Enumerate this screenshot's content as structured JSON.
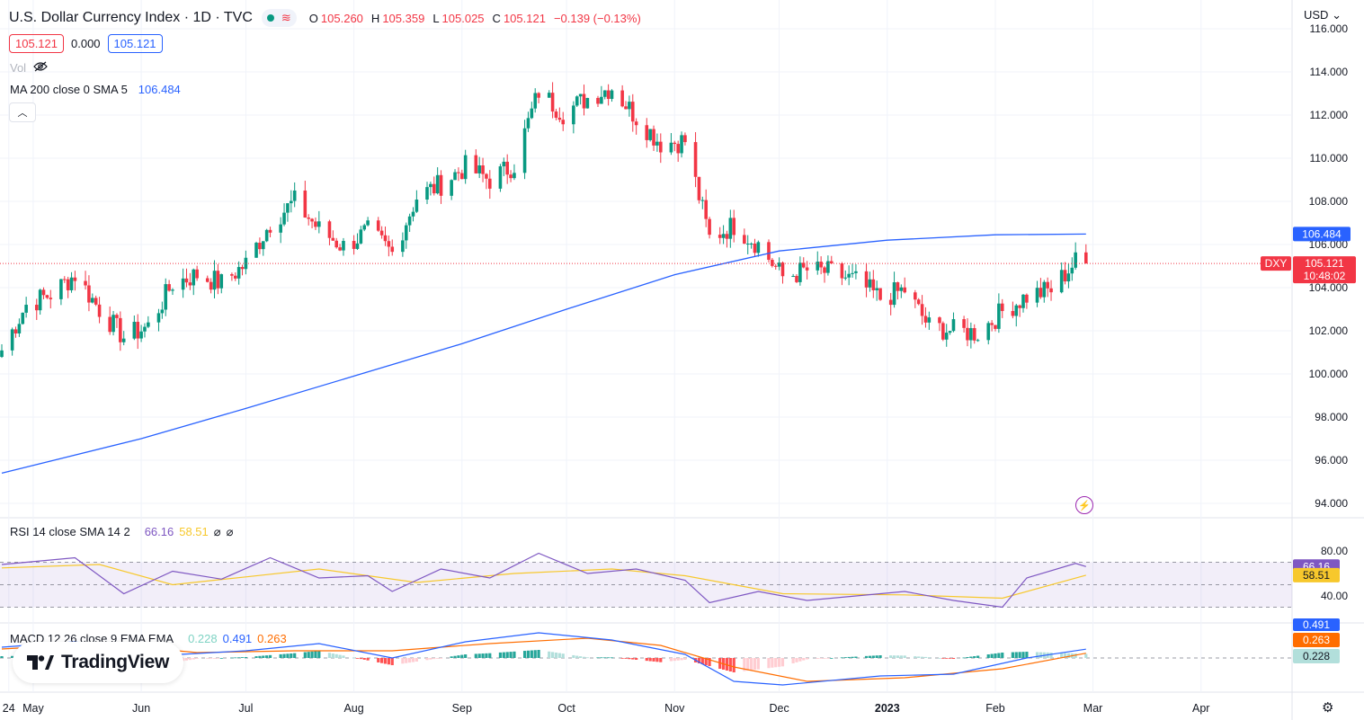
{
  "header": {
    "title": "U.S. Dollar Currency Index · 1D · TVC",
    "ohlc": [
      {
        "k": "O",
        "v": "105.260"
      },
      {
        "k": "H",
        "v": "105.359"
      },
      {
        "k": "L",
        "v": "105.025"
      },
      {
        "k": "C",
        "v": "105.121"
      }
    ],
    "change": "−0.139 (−0.13%)",
    "sell": "105.121",
    "spread": "0.000",
    "buy": "105.121",
    "vol_label": "Vol",
    "ma_label": "MA 200 close 0 SMA 5",
    "ma_value": "106.484",
    "currency": "USD"
  },
  "price_axis": {
    "ticks": [
      "116.000",
      "114.000",
      "112.000",
      "110.000",
      "108.000",
      "106.000",
      "104.000",
      "102.000",
      "100.000",
      "98.000",
      "96.000",
      "94.000"
    ],
    "dxy_tag": "DXY",
    "last_price": "105.121",
    "countdown": "10:48:02",
    "ma_price": "106.484"
  },
  "rsi": {
    "label": "RSI 14 close SMA 14 2",
    "rsi_value": "66.16",
    "sma_value": "58.51",
    "ticks": [
      "80.00",
      "40.00"
    ],
    "na1": "⌀",
    "na2": "⌀"
  },
  "macd": {
    "label": "MACD 12 26 close 9 EMA EMA",
    "hist_value": "0.228",
    "macd_value": "0.491",
    "signal_value": "0.263"
  },
  "time_axis": {
    "labels": [
      "May",
      "Jun",
      "Jul",
      "Aug",
      "Sep",
      "Oct",
      "Nov",
      "Dec",
      "2023",
      "Feb",
      "Mar",
      "Apr",
      "24"
    ]
  },
  "logo_text": "TradingView",
  "colors": {
    "up": "#089981",
    "down": "#f23645",
    "ma": "#2962ff",
    "rsi": "#7e57c2",
    "rsi_sma": "#f7c82c",
    "macd": "#2962ff",
    "signal": "#ff6d00"
  },
  "chart_data": {
    "type": "candlestick",
    "title": "U.S. Dollar Currency Index · 1D · TVC",
    "ylim": [
      94,
      116
    ],
    "closes_weekly_approx": [
      {
        "t": "Apr 22",
        "c": 101.1
      },
      {
        "t": "Apr 29",
        "c": 103.2
      },
      {
        "t": "May 6",
        "c": 103.7
      },
      {
        "t": "May 13",
        "c": 104.6
      },
      {
        "t": "May 20",
        "c": 103.0
      },
      {
        "t": "May 27",
        "c": 101.7
      },
      {
        "t": "Jun 3",
        "c": 102.2
      },
      {
        "t": "Jun 10",
        "c": 104.2
      },
      {
        "t": "Jun 17",
        "c": 104.6
      },
      {
        "t": "Jun 24",
        "c": 104.2
      },
      {
        "t": "Jul 1",
        "c": 105.1
      },
      {
        "t": "Jul 8",
        "c": 107.0
      },
      {
        "t": "Jul 15",
        "c": 108.0
      },
      {
        "t": "Jul 22",
        "c": 106.7
      },
      {
        "t": "Jul 29",
        "c": 105.9
      },
      {
        "t": "Aug 5",
        "c": 106.6
      },
      {
        "t": "Aug 12",
        "c": 105.6
      },
      {
        "t": "Aug 19",
        "c": 108.2
      },
      {
        "t": "Aug 26",
        "c": 108.8
      },
      {
        "t": "Sep 2",
        "c": 109.6
      },
      {
        "t": "Sep 9",
        "c": 109.0
      },
      {
        "t": "Sep 16",
        "c": 109.7
      },
      {
        "t": "Sep 23",
        "c": 113.1
      },
      {
        "t": "Sep 30",
        "c": 112.1
      },
      {
        "t": "Oct 7",
        "c": 112.8
      },
      {
        "t": "Oct 14",
        "c": 113.3
      },
      {
        "t": "Oct 21",
        "c": 111.9
      },
      {
        "t": "Oct 28",
        "c": 110.7
      },
      {
        "t": "Nov 4",
        "c": 110.8
      },
      {
        "t": "Nov 11",
        "c": 106.3
      },
      {
        "t": "Nov 18",
        "c": 106.9
      },
      {
        "t": "Nov 25",
        "c": 106.0
      },
      {
        "t": "Dec 2",
        "c": 104.5
      },
      {
        "t": "Dec 9",
        "c": 104.8
      },
      {
        "t": "Dec 16",
        "c": 104.7
      },
      {
        "t": "Dec 23",
        "c": 104.3
      },
      {
        "t": "Dec 30",
        "c": 103.5
      },
      {
        "t": "Jan 6",
        "c": 103.9
      },
      {
        "t": "Jan 13",
        "c": 102.2
      },
      {
        "t": "Jan 20",
        "c": 102.0
      },
      {
        "t": "Jan 27",
        "c": 101.9
      },
      {
        "t": "Feb 3",
        "c": 102.9
      },
      {
        "t": "Feb 10",
        "c": 103.6
      },
      {
        "t": "Feb 17",
        "c": 103.9
      },
      {
        "t": "Feb 24",
        "c": 105.2
      },
      {
        "t": "Feb 27",
        "c": 105.121
      }
    ],
    "ma200_points": [
      {
        "t": "Apr 22",
        "v": 95.4
      },
      {
        "t": "Jun 1",
        "v": 97.0
      },
      {
        "t": "Jul 1",
        "v": 98.4
      },
      {
        "t": "Aug 1",
        "v": 99.9
      },
      {
        "t": "Sep 1",
        "v": 101.4
      },
      {
        "t": "Oct 1",
        "v": 103.0
      },
      {
        "t": "Nov 1",
        "v": 104.6
      },
      {
        "t": "Dec 1",
        "v": 105.7
      },
      {
        "t": "Jan 1",
        "v": 106.2
      },
      {
        "t": "Feb 1",
        "v": 106.45
      },
      {
        "t": "Feb 27",
        "v": 106.484
      }
    ],
    "rsi_ylim": [
      20,
      100
    ],
    "rsi_points": [
      {
        "t": "Apr 22",
        "v": 68
      },
      {
        "t": "May 13",
        "v": 74
      },
      {
        "t": "May 27",
        "v": 42
      },
      {
        "t": "Jun 10",
        "v": 62
      },
      {
        "t": "Jun 24",
        "v": 55
      },
      {
        "t": "Jul 8",
        "v": 74
      },
      {
        "t": "Jul 22",
        "v": 56
      },
      {
        "t": "Aug 5",
        "v": 58
      },
      {
        "t": "Aug 12",
        "v": 44
      },
      {
        "t": "Aug 26",
        "v": 64
      },
      {
        "t": "Sep 9",
        "v": 56
      },
      {
        "t": "Sep 23",
        "v": 78
      },
      {
        "t": "Oct 7",
        "v": 60
      },
      {
        "t": "Oct 21",
        "v": 64
      },
      {
        "t": "Nov 4",
        "v": 54
      },
      {
        "t": "Nov 11",
        "v": 34
      },
      {
        "t": "Nov 25",
        "v": 44
      },
      {
        "t": "Dec 9",
        "v": 36
      },
      {
        "t": "Dec 23",
        "v": 40
      },
      {
        "t": "Jan 6",
        "v": 44
      },
      {
        "t": "Jan 20",
        "v": 36
      },
      {
        "t": "Feb 3",
        "v": 30
      },
      {
        "t": "Feb 10",
        "v": 56
      },
      {
        "t": "Feb 24",
        "v": 69
      },
      {
        "t": "Feb 27",
        "v": 66.16
      }
    ],
    "rsi_sma_points": [
      {
        "t": "Apr 22",
        "v": 65
      },
      {
        "t": "May 20",
        "v": 68
      },
      {
        "t": "Jun 10",
        "v": 50
      },
      {
        "t": "Jul 1",
        "v": 57
      },
      {
        "t": "Jul 22",
        "v": 64
      },
      {
        "t": "Aug 19",
        "v": 52
      },
      {
        "t": "Sep 16",
        "v": 60
      },
      {
        "t": "Oct 14",
        "v": 64
      },
      {
        "t": "Nov 4",
        "v": 58
      },
      {
        "t": "Dec 2",
        "v": 42
      },
      {
        "t": "Jan 6",
        "v": 41
      },
      {
        "t": "Feb 3",
        "v": 38
      },
      {
        "t": "Feb 27",
        "v": 58.51
      }
    ],
    "macd_points": [
      {
        "t": "Apr 22",
        "v": 0.6
      },
      {
        "t": "May 13",
        "v": 0.9
      },
      {
        "t": "Jun 3",
        "v": 0.1
      },
      {
        "t": "Jul 1",
        "v": 0.4
      },
      {
        "t": "Jul 22",
        "v": 0.8
      },
      {
        "t": "Aug 12",
        "v": 0.0
      },
      {
        "t": "Sep 2",
        "v": 0.9
      },
      {
        "t": "Sep 23",
        "v": 1.4
      },
      {
        "t": "Oct 14",
        "v": 1.0
      },
      {
        "t": "Nov 4",
        "v": 0.2
      },
      {
        "t": "Nov 18",
        "v": -1.3
      },
      {
        "t": "Dec 2",
        "v": -1.5
      },
      {
        "t": "Dec 30",
        "v": -1.0
      },
      {
        "t": "Jan 20",
        "v": -0.9
      },
      {
        "t": "Feb 10",
        "v": 0.0
      },
      {
        "t": "Feb 27",
        "v": 0.491
      }
    ],
    "signal_points": [
      {
        "t": "Apr 22",
        "v": 0.5
      },
      {
        "t": "May 20",
        "v": 0.8
      },
      {
        "t": "Jun 17",
        "v": 0.3
      },
      {
        "t": "Jul 15",
        "v": 0.4
      },
      {
        "t": "Aug 12",
        "v": 0.4
      },
      {
        "t": "Sep 9",
        "v": 0.8
      },
      {
        "t": "Oct 7",
        "v": 1.1
      },
      {
        "t": "Oct 28",
        "v": 0.7
      },
      {
        "t": "Nov 18",
        "v": -0.5
      },
      {
        "t": "Dec 9",
        "v": -1.3
      },
      {
        "t": "Jan 6",
        "v": -1.1
      },
      {
        "t": "Feb 3",
        "v": -0.6
      },
      {
        "t": "Feb 27",
        "v": 0.263
      }
    ]
  }
}
